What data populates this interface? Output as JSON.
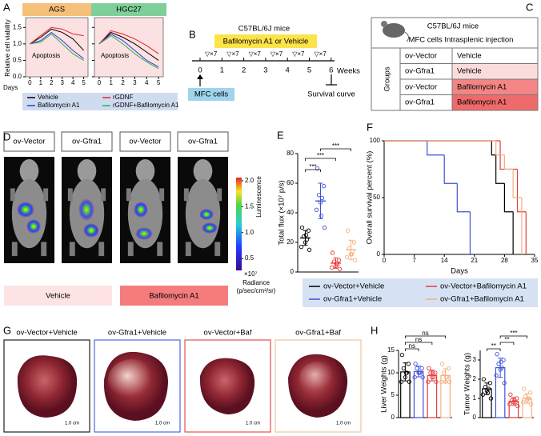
{
  "panel_labels": [
    "A",
    "B",
    "C",
    "D",
    "E",
    "F",
    "G",
    "H"
  ],
  "chart_data": [
    {
      "type": "line",
      "ylabel": "Relative cell viability",
      "xlabel": "Days",
      "ylim": [
        0,
        1.75
      ],
      "yticks": [
        {
          "value": 0,
          "label": "0.0"
        },
        {
          "value": 0.5,
          "label": "0.5"
        },
        {
          "value": 1,
          "label": "1.0"
        },
        {
          "value": 1.5,
          "label": "1.5"
        }
      ],
      "xlim": [
        -0.4,
        5.4
      ],
      "xticks": [
        0,
        1,
        2,
        3,
        4,
        5
      ],
      "legend": [
        {
          "name": "Vehicle",
          "color": "#000000"
        },
        {
          "name": "rGDNF",
          "color": "#e8252a"
        },
        {
          "name": "Bafilomycin A1",
          "color": "#2b3cd6"
        },
        {
          "name": "rGDNF+Bafilomycin A1",
          "color": "#2ab34a"
        }
      ],
      "panels": [
        {
          "title": "AGS",
          "annotation": "Apoptosis",
          "x": [
            0,
            1,
            2,
            3,
            4,
            5
          ],
          "series": [
            [
              1.0,
              1.2,
              1.45,
              1.35,
              1.15,
              0.8
            ],
            [
              1.0,
              1.25,
              1.5,
              1.45,
              1.3,
              1.25
            ],
            [
              1.0,
              1.1,
              1.35,
              1.1,
              0.8,
              0.55
            ],
            [
              1.0,
              1.05,
              1.3,
              1.0,
              0.7,
              0.5
            ]
          ]
        },
        {
          "title": "HGC27",
          "annotation": "Apoptosis",
          "x": [
            0,
            1,
            2,
            3,
            4,
            5
          ],
          "series": [
            [
              1.0,
              1.35,
              1.2,
              1.0,
              0.75,
              0.5
            ],
            [
              1.0,
              1.4,
              1.3,
              1.15,
              0.95,
              0.7
            ],
            [
              1.0,
              1.3,
              1.1,
              0.8,
              0.5,
              0.3
            ],
            [
              1.0,
              1.25,
              1.0,
              0.7,
              0.45,
              0.25
            ]
          ]
        }
      ]
    },
    {
      "type": "dot",
      "ylabel": "Total flux (×10⁷ p/s)",
      "ylim": [
        0,
        80
      ],
      "yticks": [
        0,
        20,
        40,
        60,
        80
      ],
      "significance": [
        "***",
        "***",
        "***"
      ],
      "series": [
        {
          "color": "#000000",
          "values": [
            30,
            28,
            24,
            22,
            20,
            17,
            15,
            25
          ],
          "mean": 23,
          "sd": 5
        },
        {
          "color": "#3f51d8",
          "values": [
            70,
            58,
            52,
            50,
            47,
            42,
            30,
            38
          ],
          "mean": 48,
          "sd": 12
        },
        {
          "color": "#e63c3c",
          "values": [
            13,
            8,
            7,
            5,
            4,
            3,
            2,
            6
          ],
          "mean": 6,
          "sd": 3.5
        },
        {
          "color": "#f3b07e",
          "values": [
            28,
            20,
            16,
            14,
            12,
            10,
            8,
            12
          ],
          "mean": 15,
          "sd": 6.5
        }
      ]
    },
    {
      "type": "survival",
      "ylabel": "Overall survival percent (%)",
      "xlabel": "Days",
      "xlim": [
        0,
        35
      ],
      "xticks": [
        0,
        7,
        14,
        21,
        28,
        35
      ],
      "ylim": [
        0,
        100
      ],
      "yticks": [
        0,
        50,
        100
      ],
      "series": [
        {
          "name": "ov-Vector+Vehicle",
          "color": "#000000",
          "x": [
            0,
            25,
            26,
            28,
            30
          ],
          "values": [
            100,
            87.5,
            62.5,
            37.5,
            0
          ]
        },
        {
          "name": "ov-Gfra1+Vehicle",
          "color": "#3f51d8",
          "x": [
            0,
            10,
            14,
            17,
            20
          ],
          "values": [
            100,
            87.5,
            62.5,
            37.5,
            0
          ]
        },
        {
          "name": "ov-Vector+Bafilomycin A1",
          "color": "#e63c3c",
          "x": [
            0,
            27,
            31,
            33
          ],
          "values": [
            100,
            75,
            37.5,
            0
          ]
        },
        {
          "name": "ov-Gfra1+Bafilomycin A1",
          "color": "#f3b07e",
          "x": [
            0,
            26,
            28,
            30,
            32
          ],
          "values": [
            100,
            87.5,
            75,
            50,
            0
          ]
        }
      ]
    },
    {
      "type": "dotbar",
      "ylabel": "Liver Weights (g)",
      "ylim": [
        0,
        15
      ],
      "yticks": [
        0,
        5,
        10,
        15
      ],
      "significance": [
        "ns",
        "ns",
        "ns"
      ],
      "series": [
        {
          "color": "#000000",
          "values": [
            14,
            12,
            11,
            10,
            9,
            8,
            8,
            10
          ],
          "mean": 10.2,
          "sd": 2.0
        },
        {
          "color": "#3f51d8",
          "values": [
            12,
            11,
            11,
            10,
            10,
            9,
            9,
            10
          ],
          "mean": 10.3,
          "sd": 1.2
        },
        {
          "color": "#e63c3c",
          "values": [
            11,
            10,
            10,
            9,
            9,
            8,
            8,
            10
          ],
          "mean": 9.4,
          "sd": 1.2
        },
        {
          "color": "#f3b07e",
          "values": [
            12,
            11,
            10,
            9,
            8,
            8,
            8,
            9
          ],
          "mean": 9.4,
          "sd": 1.5
        }
      ]
    },
    {
      "type": "dotbar",
      "ylabel": "Tumor Weights (g)",
      "ylim": [
        0,
        3.5
      ],
      "yticks": [
        0,
        1,
        2,
        3
      ],
      "significance": [
        "**",
        "**",
        "***"
      ],
      "series": [
        {
          "color": "#000000",
          "values": [
            2.0,
            1.8,
            1.6,
            1.5,
            1.4,
            1.2,
            1.0,
            1.3
          ],
          "mean": 1.5,
          "sd": 0.3
        },
        {
          "color": "#3f51d8",
          "values": [
            3.3,
            3.0,
            2.8,
            2.6,
            2.5,
            2.2,
            1.8,
            2.9
          ],
          "mean": 2.6,
          "sd": 0.5
        },
        {
          "color": "#e63c3c",
          "values": [
            1.2,
            1.0,
            0.9,
            0.8,
            0.8,
            0.7,
            0.6,
            0.9
          ],
          "mean": 0.85,
          "sd": 0.2
        },
        {
          "color": "#f3b07e",
          "values": [
            1.5,
            1.3,
            1.1,
            1.0,
            0.9,
            0.8,
            0.7,
            1.0
          ],
          "mean": 1.0,
          "sd": 0.25
        }
      ]
    }
  ],
  "diagram_b": {
    "title": "C57BL/6J mice",
    "treatment": "Bafilomycin A1 or Vehicle",
    "doses": [
      "▽×7",
      "▽×7",
      "▽×7",
      "▽×7",
      "▽×7",
      "▽×7"
    ],
    "weeks": [
      0,
      1,
      2,
      3,
      4,
      5,
      6
    ],
    "unit": "Weeks",
    "injection": "MFC cells",
    "endpoint": "Survival curve"
  },
  "table_c": {
    "title": "C57BL/6J mice",
    "subtitle": "MFC cells Intrasplenic injection",
    "row_header": "Groups",
    "rows": [
      [
        "ov-Vector",
        "Vehicle"
      ],
      [
        "ov-Gfra1",
        "Vehicle"
      ],
      [
        "ov-Vector",
        "Bafilomycin A1"
      ],
      [
        "ov-Gfra1",
        "Bafilomycin A1"
      ]
    ]
  },
  "imaging_d": {
    "groups": [
      "ov-Vector",
      "ov-Gfra1",
      "ov-Vector",
      "ov-Gfra1"
    ],
    "colorbar_label": "Luminescence",
    "colorbar_lim": [
      0.27,
      2.06
    ],
    "colorbar_ticks": [
      {
        "value": 2,
        "label": "2.0"
      },
      {
        "value": 1.5,
        "label": "1.5"
      },
      {
        "value": 1,
        "label": "1.0"
      },
      {
        "value": 0.5,
        "label": "0.5"
      }
    ],
    "colorbar_scale": "×10⁷",
    "colorbar_unit": [
      "Radiance",
      "(p/sec/cm²/sr)"
    ],
    "treatments": [
      "Vehicle",
      "Bafilomycin A1"
    ]
  },
  "photos_g": {
    "captions": [
      "ov-Vector+Vehicle",
      "ov-Gfra1+Vehicle",
      "ov-Vector+Baf",
      "ov-Gfra1+Baf"
    ],
    "scale_bars": [
      "1.0 cm",
      "1.0 cm",
      "1.0 cm",
      "1.0 cm"
    ]
  }
}
